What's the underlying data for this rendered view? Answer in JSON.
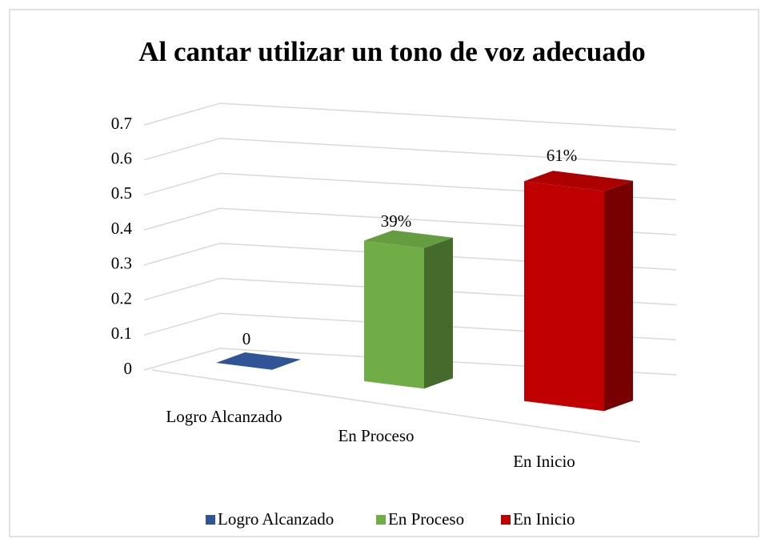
{
  "chart_data": {
    "type": "bar",
    "title": "Al cantar utilizar un tono de voz adecuado",
    "categories": [
      "Logro Alcanzado",
      "En Proceso",
      "En Inicio"
    ],
    "values": [
      0,
      0.39,
      0.61
    ],
    "value_labels": [
      "0",
      "39%",
      "61%"
    ],
    "colors": [
      "#2f5597",
      "#70ad47",
      "#c00000"
    ],
    "ylim": [
      0,
      0.7
    ],
    "yticks": [
      0,
      0.1,
      0.2,
      0.3,
      0.4,
      0.5,
      0.6,
      0.7
    ],
    "grid": true,
    "legend": "bottom"
  }
}
